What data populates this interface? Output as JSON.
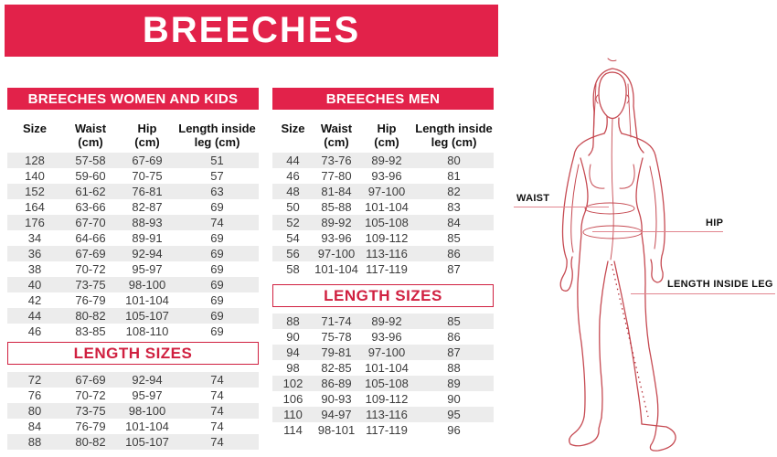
{
  "banner": {
    "title": "BREECHES"
  },
  "colors": {
    "accent_red": "#e2224a",
    "box_red": "#d02040",
    "row_stripe": "#ececec",
    "figure_line": "#c64a52"
  },
  "women": {
    "title": "BREECHES WOMEN AND KIDS",
    "columns": [
      "Size",
      "Waist\n(cm)",
      "Hip\n(cm)",
      "Length inside\nleg (cm)"
    ],
    "rows": [
      [
        "128",
        "57-58",
        "67-69",
        "51"
      ],
      [
        "140",
        "59-60",
        "70-75",
        "57"
      ],
      [
        "152",
        "61-62",
        "76-81",
        "63"
      ],
      [
        "164",
        "63-66",
        "82-87",
        "69"
      ],
      [
        "176",
        "67-70",
        "88-93",
        "74"
      ],
      [
        "34",
        "64-66",
        "89-91",
        "69"
      ],
      [
        "36",
        "67-69",
        "92-94",
        "69"
      ],
      [
        "38",
        "70-72",
        "95-97",
        "69"
      ],
      [
        "40",
        "73-75",
        "98-100",
        "69"
      ],
      [
        "42",
        "76-79",
        "101-104",
        "69"
      ],
      [
        "44",
        "80-82",
        "105-107",
        "69"
      ],
      [
        "46",
        "83-85",
        "108-110",
        "69"
      ]
    ],
    "length_title": "LENGTH SIZES",
    "length_rows": [
      [
        "72",
        "67-69",
        "92-94",
        "74"
      ],
      [
        "76",
        "70-72",
        "95-97",
        "74"
      ],
      [
        "80",
        "73-75",
        "98-100",
        "74"
      ],
      [
        "84",
        "76-79",
        "101-104",
        "74"
      ],
      [
        "88",
        "80-82",
        "105-107",
        "74"
      ]
    ]
  },
  "men": {
    "title": "BREECHES MEN",
    "columns": [
      "Size",
      "Waist\n(cm)",
      "Hip\n(cm)",
      "Length inside\nleg (cm)"
    ],
    "rows": [
      [
        "44",
        "73-76",
        "89-92",
        "80"
      ],
      [
        "46",
        "77-80",
        "93-96",
        "81"
      ],
      [
        "48",
        "81-84",
        "97-100",
        "82"
      ],
      [
        "50",
        "85-88",
        "101-104",
        "83"
      ],
      [
        "52",
        "89-92",
        "105-108",
        "84"
      ],
      [
        "54",
        "93-96",
        "109-112",
        "85"
      ],
      [
        "56",
        "97-100",
        "113-116",
        "86"
      ],
      [
        "58",
        "101-104",
        "117-119",
        "87"
      ]
    ],
    "length_title": "LENGTH SIZES",
    "length_rows": [
      [
        "88",
        "71-74",
        "89-92",
        "85"
      ],
      [
        "90",
        "75-78",
        "93-96",
        "86"
      ],
      [
        "94",
        "79-81",
        "97-100",
        "87"
      ],
      [
        "98",
        "82-85",
        "101-104",
        "88"
      ],
      [
        "102",
        "86-89",
        "105-108",
        "89"
      ],
      [
        "106",
        "90-93",
        "109-112",
        "90"
      ],
      [
        "110",
        "94-97",
        "113-116",
        "95"
      ],
      [
        "114",
        "98-101",
        "117-119",
        "96"
      ]
    ]
  },
  "figure": {
    "waist_label": "WAIST",
    "hip_label": "HIP",
    "inside_leg_label": "LENGTH INSIDE LEG"
  }
}
